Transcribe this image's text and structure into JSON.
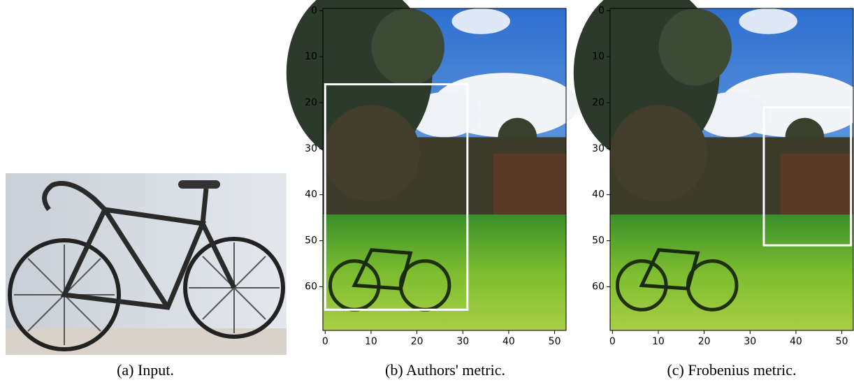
{
  "figure": {
    "panels": [
      {
        "caption": "(a) Input."
      },
      {
        "caption": "(b) Authors' metric.",
        "xlim": [
          -0.5,
          52.5
        ],
        "ylim": [
          69.5,
          -0.5
        ],
        "xticks": [
          0,
          10,
          20,
          30,
          40,
          50
        ],
        "yticks": [
          0,
          10,
          20,
          30,
          40,
          50,
          60
        ],
        "box": {
          "x": [
            0,
            31
          ],
          "y": [
            16,
            65
          ]
        }
      },
      {
        "caption": "(c) Frobenius metric.",
        "xlim": [
          -0.5,
          52.5
        ],
        "ylim": [
          69.5,
          -0.5
        ],
        "xticks": [
          0,
          10,
          20,
          30,
          40,
          50
        ],
        "yticks": [
          0,
          10,
          20,
          30,
          40,
          50,
          60
        ],
        "box": {
          "x": [
            33,
            52
          ],
          "y": [
            21,
            51
          ]
        }
      }
    ]
  }
}
